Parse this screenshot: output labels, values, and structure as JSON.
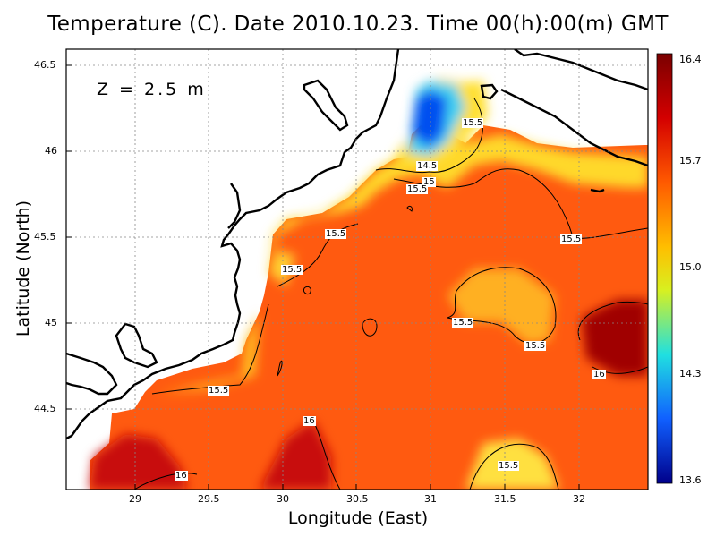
{
  "title": "Temperature (C). Date 2010.10.23. Time 00(h):00(m) GMT",
  "depth_label": "Z = 2.5 m",
  "xlabel": "Longitude (East)",
  "ylabel": "Latitude (North)",
  "x_ticks": [
    "29",
    "29.5",
    "30",
    "30.5",
    "31",
    "31.5",
    "32"
  ],
  "y_ticks": [
    "46.5",
    "46",
    "45.5",
    "45",
    "44.5"
  ],
  "colorbar_ticks": [
    "16.4",
    "15.7",
    "15.0",
    "14.3",
    "13.6"
  ],
  "contour_labels": [
    "15.5",
    "14.5",
    "15",
    "15.5",
    "15.5",
    "15.5",
    "15.5",
    "15.5",
    "15.5",
    "15.5",
    "16",
    "16",
    "16",
    "15.5"
  ],
  "colors": {
    "hot": "#c00000",
    "warm": "#ff6a00",
    "mild": "#ffd21a",
    "cool": "#16c2e6",
    "cold": "#0000b8"
  },
  "chart_data": {
    "type": "heatmap",
    "title": "Temperature (C). Date 2010.10.23. Time 00(h):00(m) GMT",
    "xlabel": "Longitude (East)",
    "ylabel": "Latitude (North)",
    "xlim": [
      28.5,
      32.45
    ],
    "ylim": [
      44.05,
      46.53
    ],
    "colorbar_range": [
      13.6,
      16.4
    ],
    "colorbar_ticks": [
      16.4,
      15.7,
      15.0,
      14.3,
      13.6
    ],
    "depth": "Z = 2.5 m",
    "grid": true,
    "contour_levels": [
      14.5,
      15.0,
      15.5,
      16.0
    ]
  }
}
